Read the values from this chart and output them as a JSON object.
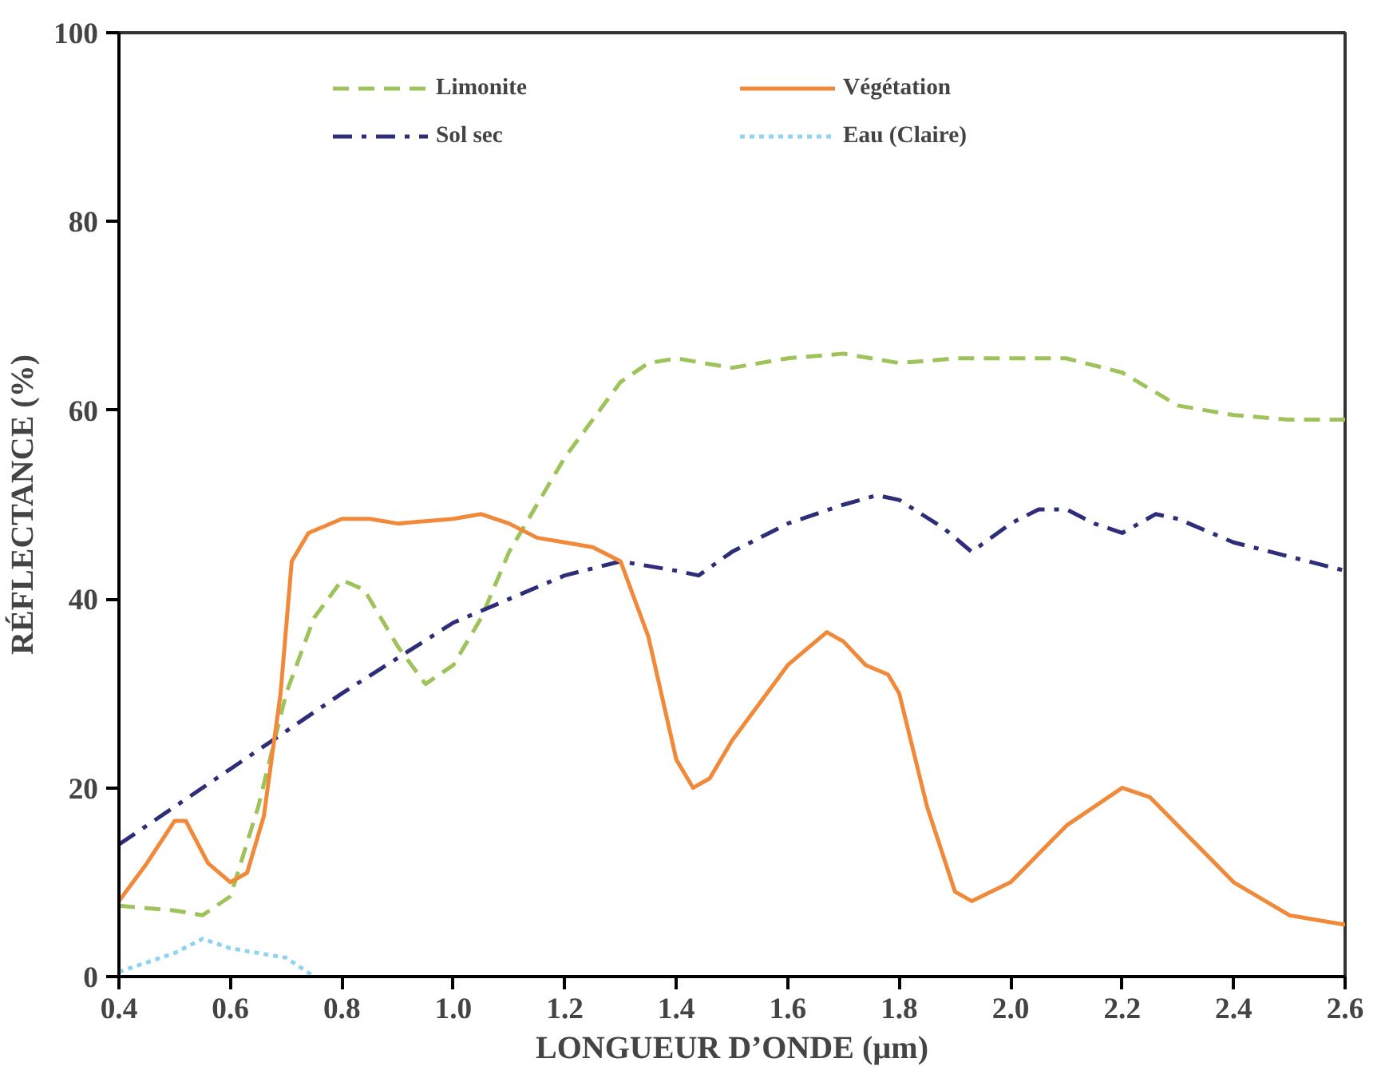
{
  "chart_data": {
    "type": "line",
    "xlabel": "LONGUEUR D’ONDE (µm)",
    "ylabel": "RÉFLECTANCE (%)",
    "xlim": [
      0.4,
      2.6
    ],
    "ylim": [
      0,
      100
    ],
    "xticks": [
      {
        "value": 0.4,
        "label": "0.4"
      },
      {
        "value": 0.6,
        "label": "0.6"
      },
      {
        "value": 0.8,
        "label": "0.8"
      },
      {
        "value": 1.0,
        "label": "1.0"
      },
      {
        "value": 1.2,
        "label": "1.2"
      },
      {
        "value": 1.4,
        "label": "1.4"
      },
      {
        "value": 1.6,
        "label": "1.6"
      },
      {
        "value": 1.8,
        "label": "1.8"
      },
      {
        "value": 2.0,
        "label": "2.0"
      },
      {
        "value": 2.2,
        "label": "2.2"
      },
      {
        "value": 2.4,
        "label": "2.4"
      },
      {
        "value": 2.6,
        "label": "2.6"
      }
    ],
    "yticks": [
      0,
      20,
      40,
      60,
      80,
      100
    ],
    "grid": false,
    "legend": "top",
    "series": [
      {
        "name": "Limonite",
        "color": "#9dc35a",
        "line_style": "dashed",
        "x": [
          0.4,
          0.5,
          0.55,
          0.6,
          0.65,
          0.7,
          0.75,
          0.8,
          0.84,
          0.9,
          0.95,
          1.0,
          1.05,
          1.1,
          1.2,
          1.3,
          1.35,
          1.4,
          1.5,
          1.6,
          1.7,
          1.8,
          1.9,
          2.0,
          2.1,
          2.2,
          2.3,
          2.4,
          2.5,
          2.6
        ],
        "values": [
          7.5,
          7,
          6.5,
          8.5,
          18,
          30,
          38,
          42,
          41,
          35,
          31,
          33,
          38,
          45,
          55,
          63,
          65,
          65.5,
          64.5,
          65.5,
          66,
          65,
          65.5,
          65.5,
          65.5,
          64,
          60.5,
          59.5,
          59,
          59
        ]
      },
      {
        "name": "Sol sec",
        "color": "#2e2d7a",
        "line_style": "dashdot",
        "x": [
          0.4,
          0.6,
          0.8,
          1.0,
          1.2,
          1.3,
          1.4,
          1.44,
          1.5,
          1.6,
          1.7,
          1.76,
          1.8,
          1.88,
          1.93,
          2.0,
          2.05,
          2.1,
          2.15,
          2.2,
          2.26,
          2.3,
          2.4,
          2.5,
          2.6
        ],
        "values": [
          14,
          22,
          30,
          37.5,
          42.5,
          44,
          43,
          42.5,
          45,
          48,
          50,
          51,
          50.5,
          47.5,
          45,
          48,
          49.5,
          49.5,
          48,
          47,
          49,
          48.5,
          46,
          44.5,
          43
        ]
      },
      {
        "name": "Végétation",
        "color": "#f08a3a",
        "line_style": "solid",
        "x": [
          0.4,
          0.45,
          0.5,
          0.52,
          0.56,
          0.6,
          0.63,
          0.66,
          0.69,
          0.71,
          0.74,
          0.8,
          0.85,
          0.9,
          1.0,
          1.05,
          1.1,
          1.15,
          1.2,
          1.25,
          1.3,
          1.35,
          1.4,
          1.43,
          1.46,
          1.5,
          1.6,
          1.67,
          1.7,
          1.74,
          1.78,
          1.8,
          1.85,
          1.9,
          1.93,
          2.0,
          2.1,
          2.2,
          2.25,
          2.3,
          2.4,
          2.5,
          2.6
        ],
        "values": [
          8,
          12,
          16.5,
          16.5,
          12,
          10,
          11,
          17,
          30,
          44,
          47,
          48.5,
          48.5,
          48,
          48.5,
          49,
          48,
          46.5,
          46,
          45.5,
          44,
          36,
          23,
          20,
          21,
          25,
          33,
          36.5,
          35.5,
          33,
          32,
          30,
          18,
          9,
          8,
          10,
          16,
          20,
          19,
          16,
          10,
          6.5,
          5.5
        ]
      },
      {
        "name": "Eau (Claire)",
        "color": "#8fd3f0",
        "line_style": "dotted",
        "x": [
          0.4,
          0.45,
          0.5,
          0.55,
          0.6,
          0.7,
          0.75
        ],
        "values": [
          0.5,
          1.5,
          2.5,
          4,
          3,
          2,
          0
        ]
      }
    ]
  }
}
